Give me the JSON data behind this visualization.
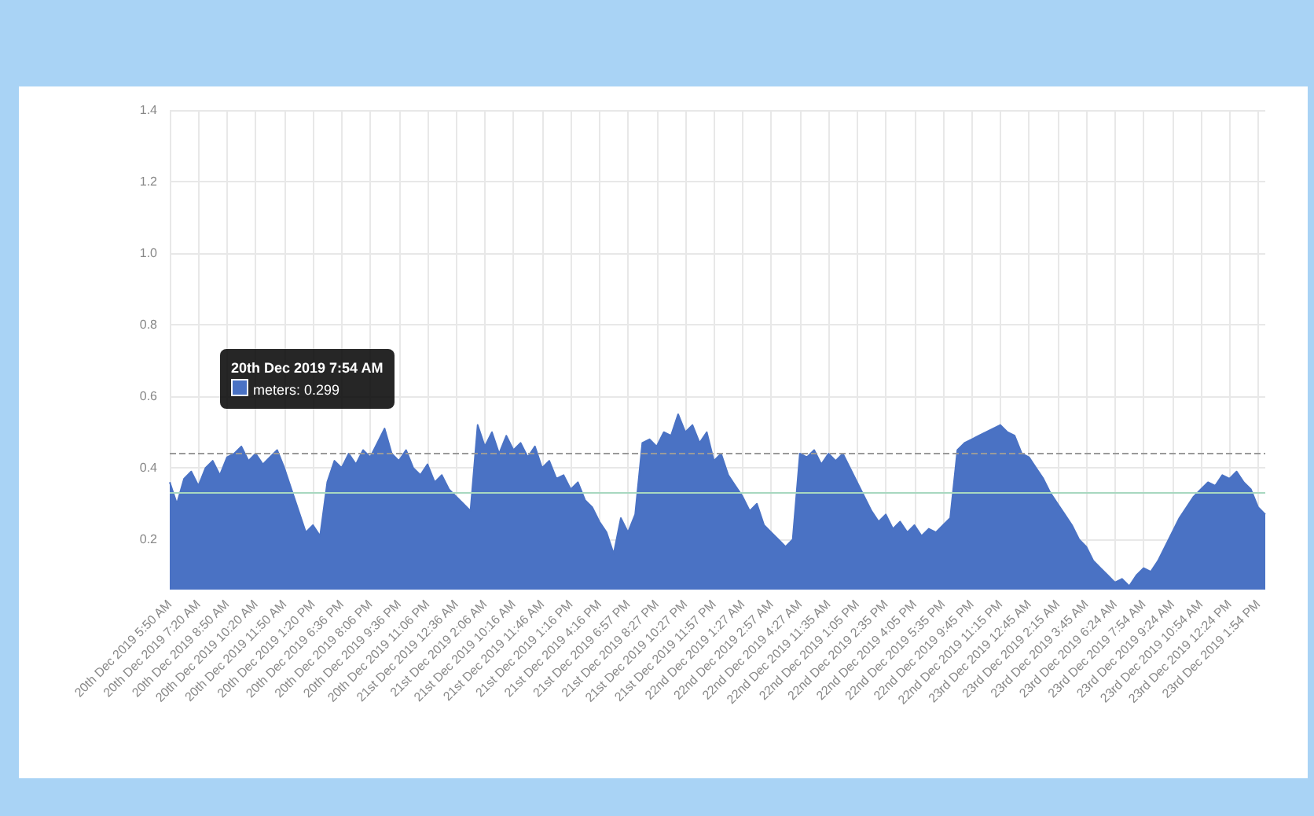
{
  "chart_data": {
    "type": "area",
    "categories": [
      "20th Dec 2019 5:50 AM",
      null,
      null,
      null,
      "20th Dec 2019 7:20 AM",
      null,
      null,
      null,
      "20th Dec 2019 8:50 AM",
      null,
      null,
      null,
      "20th Dec 2019 10:20 AM",
      null,
      null,
      null,
      "20th Dec 2019 11:50 AM",
      null,
      null,
      null,
      "20th Dec 2019 1:20 PM",
      null,
      null,
      null,
      "20th Dec 2019 6:36 PM",
      null,
      null,
      null,
      "20th Dec 2019 8:06 PM",
      null,
      null,
      null,
      "20th Dec 2019 9:36 PM",
      null,
      null,
      null,
      "20th Dec 2019 11:06 PM",
      null,
      null,
      null,
      "21st Dec 2019 12:36 AM",
      null,
      null,
      null,
      "21st Dec 2019 2:06 AM",
      null,
      null,
      null,
      "21st Dec 2019 10:16 AM",
      null,
      null,
      null,
      "21st Dec 2019 11:46 AM",
      null,
      null,
      null,
      "21st Dec 2019 1:16 PM",
      null,
      null,
      null,
      "21st Dec 2019 4:16 PM",
      null,
      null,
      null,
      "21st Dec 2019 6:57 PM",
      null,
      null,
      null,
      "21st Dec 2019 8:27 PM",
      null,
      null,
      null,
      "21st Dec 2019 10:27 PM",
      null,
      null,
      null,
      "21st Dec 2019 11:57 PM",
      null,
      null,
      null,
      "22nd Dec 2019 1:27 AM",
      null,
      null,
      null,
      "22nd Dec 2019 2:57 AM",
      null,
      null,
      null,
      "22nd Dec 2019 4:27 AM",
      null,
      null,
      null,
      "22nd Dec 2019 11:35 AM",
      null,
      null,
      null,
      "22nd Dec 2019 1:05 PM",
      null,
      null,
      null,
      "22nd Dec 2019 2:35 PM",
      null,
      null,
      null,
      "22nd Dec 2019 4:05 PM",
      null,
      null,
      null,
      "22nd Dec 2019 5:35 PM",
      null,
      null,
      null,
      "22nd Dec 2019 9:45 PM",
      null,
      null,
      null,
      "22nd Dec 2019 11:15 PM",
      null,
      null,
      null,
      "23rd Dec 2019 12:45 AM",
      null,
      null,
      null,
      "23rd Dec 2019 2:15 AM",
      null,
      null,
      null,
      "23rd Dec 2019 3:45 AM",
      null,
      null,
      null,
      "23rd Dec 2019 6:24 AM",
      null,
      null,
      null,
      "23rd Dec 2019 7:54 AM",
      null,
      null,
      null,
      "23rd Dec 2019 9:24 AM",
      null,
      null,
      null,
      "23rd Dec 2019 10:54 AM",
      null,
      null,
      null,
      "23rd Dec 2019 12:24 PM",
      null,
      null,
      null,
      "23rd Dec 2019 1:54 PM",
      null
    ],
    "series": [
      {
        "color": "#4a72c4",
        "values": [
          0.36,
          0.3,
          0.37,
          0.39,
          0.35,
          0.4,
          0.42,
          0.38,
          0.43,
          0.44,
          0.46,
          0.42,
          0.44,
          0.41,
          0.43,
          0.45,
          0.4,
          0.34,
          0.28,
          0.22,
          0.24,
          0.21,
          0.36,
          0.42,
          0.4,
          0.44,
          0.41,
          0.45,
          0.43,
          0.47,
          0.51,
          0.44,
          0.42,
          0.45,
          0.4,
          0.38,
          0.41,
          0.36,
          0.38,
          0.34,
          0.32,
          0.3,
          0.28,
          0.52,
          0.46,
          0.5,
          0.44,
          0.49,
          0.45,
          0.47,
          0.43,
          0.46,
          0.4,
          0.42,
          0.37,
          0.38,
          0.34,
          0.36,
          0.31,
          0.29,
          0.25,
          0.22,
          0.16,
          0.26,
          0.22,
          0.27,
          0.47,
          0.48,
          0.46,
          0.5,
          0.49,
          0.55,
          0.5,
          0.52,
          0.47,
          0.5,
          0.42,
          0.44,
          0.38,
          0.35,
          0.32,
          0.28,
          0.3,
          0.24,
          0.22,
          0.2,
          0.18,
          0.2,
          0.44,
          0.43,
          0.45,
          0.41,
          0.44,
          0.42,
          0.44,
          0.4,
          0.36,
          0.32,
          0.28,
          0.25,
          0.27,
          0.23,
          0.25,
          0.22,
          0.24,
          0.21,
          0.23,
          0.22,
          0.24,
          0.26,
          0.45,
          0.47,
          0.48,
          0.49,
          0.5,
          0.51,
          0.52,
          0.5,
          0.49,
          0.44,
          0.43,
          0.4,
          0.37,
          0.33,
          0.3,
          0.27,
          0.24,
          0.2,
          0.18,
          0.14,
          0.12,
          0.1,
          0.08,
          0.09,
          0.07,
          0.1,
          0.12,
          0.11,
          0.14,
          0.18,
          0.22,
          0.26,
          0.29,
          0.32,
          0.34,
          0.36,
          0.35,
          0.38,
          0.37,
          0.39,
          0.36,
          0.34,
          0.29,
          0.27
        ]
      }
    ],
    "ylim": [
      0.06,
      1.4
    ],
    "yticks": [
      0.2,
      0.4,
      0.6,
      0.8,
      {
        "value": 1,
        "label": "1.0"
      },
      1.2,
      1.4
    ],
    "grid": true,
    "marker": "none",
    "ref_lines": [
      {
        "axis": "y",
        "value": 0.44,
        "color": "#9a9a9a",
        "line_style": "dashed"
      },
      {
        "axis": "y",
        "value": 0.33,
        "color": "#a8d8c0",
        "line_style": "solid"
      }
    ],
    "annotations": [
      "20th Dec 2019 7:54 AM",
      "meters: 0.299"
    ]
  }
}
